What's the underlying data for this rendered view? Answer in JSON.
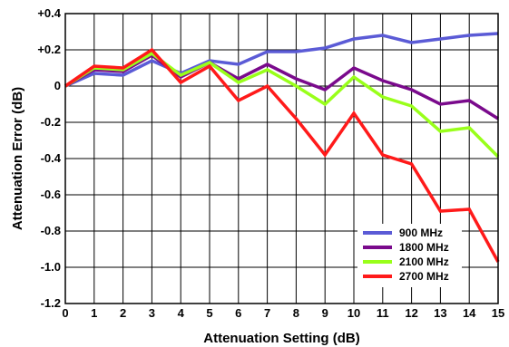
{
  "chart_data": {
    "type": "line",
    "title": "",
    "xlabel": "Attenuation Setting (dB)",
    "ylabel": "Attenuation Error (dB)",
    "xlim": [
      0,
      15
    ],
    "ylim": [
      -1.2,
      0.4
    ],
    "x": [
      0,
      1,
      2,
      3,
      4,
      5,
      6,
      7,
      8,
      9,
      10,
      11,
      12,
      13,
      14,
      15
    ],
    "x_ticks": [
      "0",
      "1",
      "2",
      "3",
      "4",
      "5",
      "6",
      "7",
      "8",
      "9",
      "10",
      "11",
      "12",
      "13",
      "14",
      "15"
    ],
    "y_ticks": [
      {
        "value": 0.4,
        "label": "+0.4"
      },
      {
        "value": 0.2,
        "label": "+0.2"
      },
      {
        "value": 0,
        "label": "0"
      },
      {
        "value": -0.2,
        "label": "-0.2"
      },
      {
        "value": -0.4,
        "label": "-0.4"
      },
      {
        "value": -0.6,
        "label": "-0.6"
      },
      {
        "value": -0.8,
        "label": "-0.8"
      },
      {
        "value": -1.0,
        "label": "-1.0"
      },
      {
        "value": -1.2,
        "label": "-1.2"
      }
    ],
    "grid": true,
    "legend_position": "bottom-right",
    "series": [
      {
        "name": "900 MHz",
        "color": "#5b5bd6",
        "values": [
          0,
          0.07,
          0.06,
          0.14,
          0.07,
          0.14,
          0.12,
          0.19,
          0.19,
          0.21,
          0.26,
          0.28,
          0.24,
          0.26,
          0.28,
          0.29
        ]
      },
      {
        "name": "1800 MHz",
        "color": "#7a0a8c",
        "values": [
          0,
          0.09,
          0.08,
          0.17,
          0.05,
          0.13,
          0.04,
          0.12,
          0.04,
          -0.02,
          0.1,
          0.03,
          -0.02,
          -0.1,
          -0.08,
          -0.18
        ]
      },
      {
        "name": "2100 MHz",
        "color": "#99ff1a",
        "values": [
          0,
          0.1,
          0.09,
          0.18,
          0.06,
          0.13,
          0.02,
          0.09,
          0.0,
          -0.1,
          0.05,
          -0.06,
          -0.11,
          -0.25,
          -0.23,
          -0.39
        ]
      },
      {
        "name": "2700 MHz",
        "color": "#ff1a1a",
        "values": [
          0,
          0.11,
          0.1,
          0.2,
          0.02,
          0.11,
          -0.08,
          0.0,
          -0.18,
          -0.38,
          -0.15,
          -0.38,
          -0.43,
          -0.69,
          -0.68,
          -0.97
        ]
      }
    ]
  }
}
